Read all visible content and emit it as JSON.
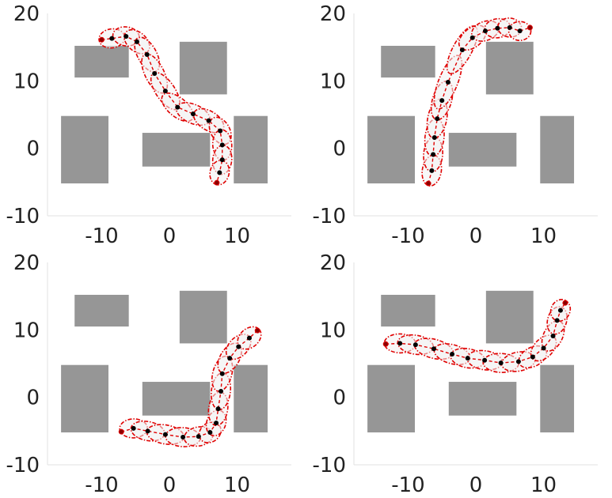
{
  "colors": {
    "obstacle": "#969696",
    "path": "#e00000",
    "ellipse": "#e00000",
    "waypoint": "#000000",
    "endpoint": "#8b0000",
    "ellipse_fill": "#f2f2f2",
    "axis": "#e2e2e2",
    "tick_text": "#222222"
  },
  "chart_data": [
    {
      "type": "scatter",
      "xlim": [
        -18,
        18
      ],
      "ylim": [
        -10,
        20
      ],
      "xticks": [
        "-10",
        "0",
        "10"
      ],
      "xtick_values": [
        -10,
        0,
        10
      ],
      "yticks": [
        "-10",
        "0",
        "10",
        "20"
      ],
      "ytick_values": [
        -10,
        0,
        10,
        20
      ],
      "obstacles": [
        {
          "x0": -14,
          "x1": -6,
          "y0": 10.5,
          "y1": 15.2
        },
        {
          "x0": 1.5,
          "x1": 8.5,
          "y0": 8,
          "y1": 15.8
        },
        {
          "x0": -16,
          "x1": -9,
          "y0": -5.2,
          "y1": 4.8
        },
        {
          "x0": -4,
          "x1": 6,
          "y0": -2.7,
          "y1": 2.3
        },
        {
          "x0": 9.5,
          "x1": 14.5,
          "y0": -5.2,
          "y1": 4.8
        }
      ],
      "waypoints": [
        {
          "x": -10,
          "y": 16.1
        },
        {
          "x": -8.5,
          "y": 16.3
        },
        {
          "x": -6.4,
          "y": 16.6
        },
        {
          "x": -4.8,
          "y": 15.8
        },
        {
          "x": -3.3,
          "y": 13.9
        },
        {
          "x": -2.2,
          "y": 11.1
        },
        {
          "x": -0.6,
          "y": 8.5
        },
        {
          "x": 1.2,
          "y": 6.1
        },
        {
          "x": 3.5,
          "y": 5.1
        },
        {
          "x": 5.8,
          "y": 4.1
        },
        {
          "x": 7.5,
          "y": 2.6
        },
        {
          "x": 7.8,
          "y": 0.5
        },
        {
          "x": 7.8,
          "y": -1.7
        },
        {
          "x": 7.4,
          "y": -3.6
        },
        {
          "x": 7.0,
          "y": -5.1
        }
      ]
    },
    {
      "type": "scatter",
      "xlim": [
        -18,
        18
      ],
      "ylim": [
        -10,
        20
      ],
      "xticks": [
        "-10",
        "0",
        "10"
      ],
      "xtick_values": [
        -10,
        0,
        10
      ],
      "yticks": [
        "-10",
        "0",
        "10",
        "20"
      ],
      "ytick_values": [
        -10,
        0,
        10,
        20
      ],
      "obstacles": [
        {
          "x0": -14,
          "x1": -6,
          "y0": 10.5,
          "y1": 15.2
        },
        {
          "x0": 1.5,
          "x1": 8.5,
          "y0": 8,
          "y1": 15.8
        },
        {
          "x0": -16,
          "x1": -9,
          "y0": -5.2,
          "y1": 4.8
        },
        {
          "x0": -4,
          "x1": 6,
          "y0": -2.7,
          "y1": 2.3
        },
        {
          "x0": 9.5,
          "x1": 14.5,
          "y0": -5.2,
          "y1": 4.8
        }
      ],
      "waypoints": [
        {
          "x": -7,
          "y": -5.2
        },
        {
          "x": -6.5,
          "y": -3.3
        },
        {
          "x": -6.3,
          "y": -0.9
        },
        {
          "x": -6.1,
          "y": 1.6
        },
        {
          "x": -5.7,
          "y": 4.4
        },
        {
          "x": -5.0,
          "y": 7.1
        },
        {
          "x": -4.1,
          "y": 9.8
        },
        {
          "x": -2.0,
          "y": 14.6
        },
        {
          "x": -0.5,
          "y": 16.4
        },
        {
          "x": 1.4,
          "y": 17.4
        },
        {
          "x": 3.2,
          "y": 17.8
        },
        {
          "x": 5.0,
          "y": 17.9
        },
        {
          "x": 6.5,
          "y": 17.4
        },
        {
          "x": 8.0,
          "y": 17.9
        }
      ]
    },
    {
      "type": "scatter",
      "xlim": [
        -18,
        18
      ],
      "ylim": [
        -10,
        20
      ],
      "xticks": [
        "-10",
        "0",
        "10"
      ],
      "xtick_values": [
        -10,
        0,
        10
      ],
      "yticks": [
        "-10",
        "0",
        "10",
        "20"
      ],
      "ytick_values": [
        -10,
        0,
        10,
        20
      ],
      "obstacles": [
        {
          "x0": -14,
          "x1": -6,
          "y0": 10.5,
          "y1": 15.2
        },
        {
          "x0": 1.5,
          "x1": 8.5,
          "y0": 8,
          "y1": 15.8
        },
        {
          "x0": -16,
          "x1": -9,
          "y0": -5.2,
          "y1": 4.8
        },
        {
          "x0": -4,
          "x1": 6,
          "y0": -2.7,
          "y1": 2.3
        },
        {
          "x0": 9.5,
          "x1": 14.5,
          "y0": -5.2,
          "y1": 4.8
        }
      ],
      "waypoints": [
        {
          "x": -7.1,
          "y": -5.1
        },
        {
          "x": -5.3,
          "y": -4.6
        },
        {
          "x": -3.2,
          "y": -5.0
        },
        {
          "x": -0.6,
          "y": -5.5
        },
        {
          "x": 2.0,
          "y": -5.9
        },
        {
          "x": 4.3,
          "y": -5.8
        },
        {
          "x": 6.0,
          "y": -5.2
        },
        {
          "x": 6.9,
          "y": -3.8
        },
        {
          "x": 7.2,
          "y": -1.7
        },
        {
          "x": 7.6,
          "y": 0.9
        },
        {
          "x": 7.8,
          "y": 3.5
        },
        {
          "x": 8.9,
          "y": 5.8
        },
        {
          "x": 10.2,
          "y": 7.5
        },
        {
          "x": 11.8,
          "y": 8.8
        },
        {
          "x": 13.0,
          "y": 9.9
        }
      ]
    },
    {
      "type": "scatter",
      "xlim": [
        -18,
        18
      ],
      "ylim": [
        -10,
        20
      ],
      "xticks": [
        "-10",
        "0",
        "10"
      ],
      "xtick_values": [
        -10,
        0,
        10
      ],
      "yticks": [
        "-10",
        "0",
        "10",
        "20"
      ],
      "ytick_values": [
        -10,
        0,
        10,
        20
      ],
      "obstacles": [
        {
          "x0": -14,
          "x1": -6,
          "y0": 10.5,
          "y1": 15.2
        },
        {
          "x0": 1.5,
          "x1": 8.5,
          "y0": 8,
          "y1": 15.8
        },
        {
          "x0": -16,
          "x1": -9,
          "y0": -5.2,
          "y1": 4.8
        },
        {
          "x0": -4,
          "x1": 6,
          "y0": -2.7,
          "y1": 2.3
        },
        {
          "x0": 9.5,
          "x1": 14.5,
          "y0": -5.2,
          "y1": 4.8
        }
      ],
      "waypoints": [
        {
          "x": -13.3,
          "y": 7.9
        },
        {
          "x": -11.2,
          "y": 8.0
        },
        {
          "x": -8.9,
          "y": 7.8
        },
        {
          "x": -6.2,
          "y": 7.2
        },
        {
          "x": -3.5,
          "y": 6.4
        },
        {
          "x": -1.2,
          "y": 5.8
        },
        {
          "x": 1.3,
          "y": 5.5
        },
        {
          "x": 3.7,
          "y": 5.1
        },
        {
          "x": 6.3,
          "y": 5.3
        },
        {
          "x": 8.4,
          "y": 6.0
        },
        {
          "x": 10.0,
          "y": 7.3
        },
        {
          "x": 11.4,
          "y": 9.1
        },
        {
          "x": 12.0,
          "y": 11.4
        },
        {
          "x": 12.5,
          "y": 12.9
        },
        {
          "x": 13.2,
          "y": 14.0
        }
      ]
    }
  ]
}
